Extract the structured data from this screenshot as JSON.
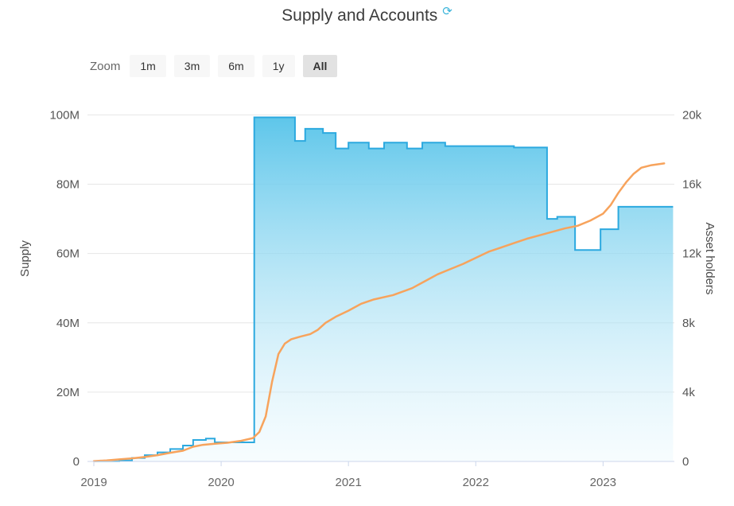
{
  "title": {
    "text": "Supply and Accounts",
    "icon": "refresh-icon"
  },
  "range_selector": {
    "zoom_label": "Zoom",
    "buttons": [
      {
        "label": "1m",
        "selected": false
      },
      {
        "label": "3m",
        "selected": false
      },
      {
        "label": "6m",
        "selected": false
      },
      {
        "label": "1y",
        "selected": false
      },
      {
        "label": "All",
        "selected": true
      }
    ]
  },
  "axes": {
    "left": {
      "title": "Supply",
      "ticks": [
        "0",
        "20M",
        "40M",
        "60M",
        "80M",
        "100M"
      ],
      "tick_values": [
        0,
        20,
        40,
        60,
        80,
        100
      ]
    },
    "right": {
      "title": "Asset holders",
      "ticks": [
        "0",
        "4k",
        "8k",
        "12k",
        "16k",
        "20k"
      ],
      "tick_values": [
        0,
        4,
        8,
        12,
        16,
        20
      ]
    },
    "x": {
      "ticks": [
        "2019",
        "2020",
        "2021",
        "2022",
        "2023"
      ],
      "tick_values": [
        2019,
        2020,
        2021,
        2022,
        2023
      ]
    }
  },
  "chart_data": {
    "type": "mixed",
    "title": "Supply and Accounts",
    "ylabel_left": "Supply",
    "ylabel_right": "Asset holders",
    "xlim": [
      2018.95,
      2023.56
    ],
    "ylim_left": [
      0,
      104
    ],
    "ylim_right": [
      0,
      20.8
    ],
    "grid": true,
    "legend": "none",
    "series": [
      {
        "name": "Supply",
        "type": "area",
        "step": true,
        "axis": "left",
        "unit": "M",
        "color": "#2ca9df",
        "fill_top": "#55c3e9",
        "fill_bottom": "#e8f7fd",
        "points": [
          [
            2019.0,
            0.05
          ],
          [
            2019.2,
            0.3
          ],
          [
            2019.3,
            1.0
          ],
          [
            2019.4,
            1.8
          ],
          [
            2019.5,
            2.6
          ],
          [
            2019.6,
            3.6
          ],
          [
            2019.7,
            4.6
          ],
          [
            2019.78,
            6.2
          ],
          [
            2019.88,
            6.6
          ],
          [
            2019.95,
            5.5
          ],
          [
            2020.26,
            99.3
          ],
          [
            2020.58,
            92.5
          ],
          [
            2020.66,
            96.0
          ],
          [
            2020.8,
            94.8
          ],
          [
            2020.9,
            90.3
          ],
          [
            2021.0,
            92.0
          ],
          [
            2021.16,
            90.3
          ],
          [
            2021.28,
            92.0
          ],
          [
            2021.46,
            90.3
          ],
          [
            2021.58,
            92.0
          ],
          [
            2021.76,
            91.0
          ],
          [
            2022.3,
            90.6
          ],
          [
            2022.56,
            70.0
          ],
          [
            2022.64,
            70.6
          ],
          [
            2022.78,
            61.0
          ],
          [
            2022.98,
            67.0
          ],
          [
            2023.12,
            73.5
          ],
          [
            2023.55,
            73.5
          ]
        ]
      },
      {
        "name": "Asset holders",
        "type": "line",
        "step": false,
        "axis": "right",
        "unit": "k",
        "color": "#f7a35c",
        "points": [
          [
            2019.0,
            0.02
          ],
          [
            2019.1,
            0.06
          ],
          [
            2019.2,
            0.12
          ],
          [
            2019.3,
            0.18
          ],
          [
            2019.4,
            0.26
          ],
          [
            2019.5,
            0.36
          ],
          [
            2019.6,
            0.5
          ],
          [
            2019.7,
            0.62
          ],
          [
            2019.78,
            0.85
          ],
          [
            2019.85,
            0.95
          ],
          [
            2019.95,
            1.02
          ],
          [
            2020.05,
            1.08
          ],
          [
            2020.15,
            1.18
          ],
          [
            2020.25,
            1.35
          ],
          [
            2020.3,
            1.7
          ],
          [
            2020.35,
            2.6
          ],
          [
            2020.4,
            4.6
          ],
          [
            2020.45,
            6.2
          ],
          [
            2020.5,
            6.8
          ],
          [
            2020.55,
            7.05
          ],
          [
            2020.62,
            7.2
          ],
          [
            2020.7,
            7.35
          ],
          [
            2020.76,
            7.6
          ],
          [
            2020.82,
            8.0
          ],
          [
            2020.9,
            8.35
          ],
          [
            2021.0,
            8.7
          ],
          [
            2021.1,
            9.1
          ],
          [
            2021.2,
            9.35
          ],
          [
            2021.35,
            9.6
          ],
          [
            2021.5,
            10.0
          ],
          [
            2021.6,
            10.4
          ],
          [
            2021.7,
            10.8
          ],
          [
            2021.8,
            11.1
          ],
          [
            2021.9,
            11.4
          ],
          [
            2022.0,
            11.75
          ],
          [
            2022.1,
            12.1
          ],
          [
            2022.2,
            12.35
          ],
          [
            2022.3,
            12.6
          ],
          [
            2022.4,
            12.85
          ],
          [
            2022.5,
            13.05
          ],
          [
            2022.6,
            13.25
          ],
          [
            2022.7,
            13.45
          ],
          [
            2022.8,
            13.6
          ],
          [
            2022.9,
            13.9
          ],
          [
            2023.0,
            14.3
          ],
          [
            2023.06,
            14.8
          ],
          [
            2023.12,
            15.5
          ],
          [
            2023.18,
            16.1
          ],
          [
            2023.24,
            16.6
          ],
          [
            2023.3,
            16.95
          ],
          [
            2023.38,
            17.1
          ],
          [
            2023.48,
            17.2
          ]
        ]
      }
    ]
  },
  "colors": {
    "supply_line": "#2ca9df",
    "holders_line": "#f7a35c",
    "gridline": "#e6e6e6",
    "axis_line": "#ccd6eb",
    "tick_label": "#555555",
    "button_bg": "#f7f7f7",
    "button_selected_bg": "#e2e2e2"
  }
}
